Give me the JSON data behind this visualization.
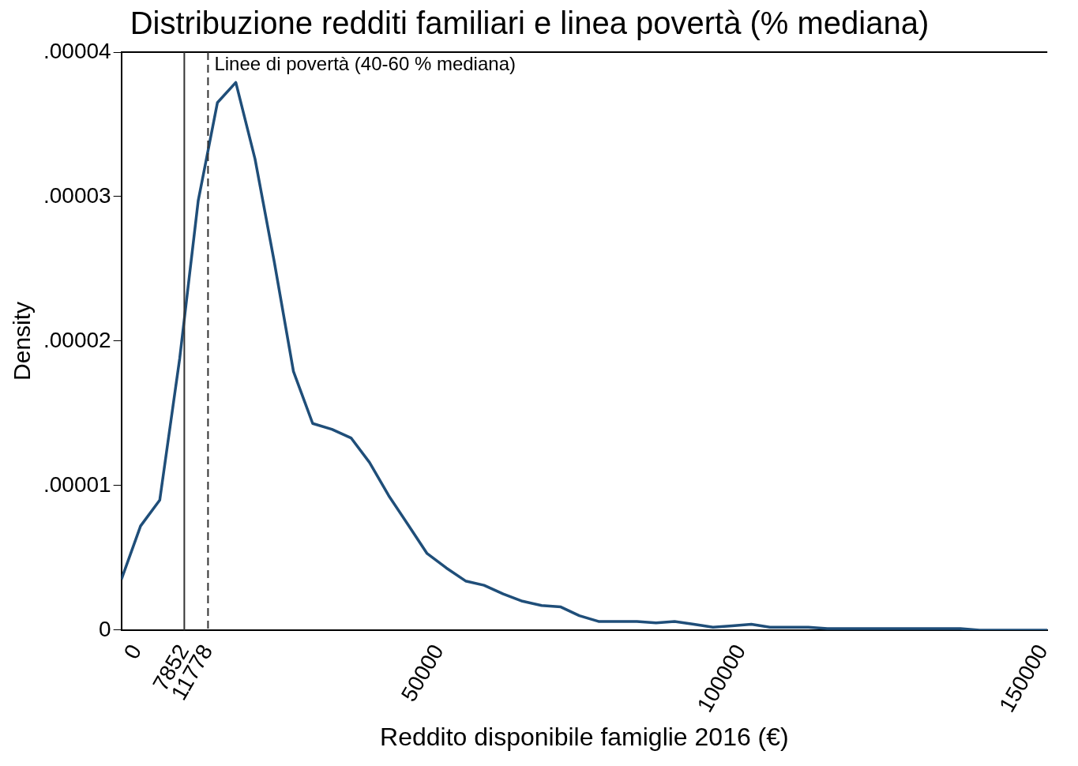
{
  "chart_data": {
    "type": "line",
    "title": "Distribuzione redditi familiari e linea povertà (% mediana)",
    "xlabel": "Reddito disponibile famiglie 2016 (€)",
    "ylabel": "Density",
    "x": [
      -2570,
      611,
      3790,
      7090,
      10150,
      13330,
      16380,
      19560,
      22740,
      25920,
      29100,
      32280,
      35450,
      38510,
      41690,
      44870,
      48040,
      51220,
      54400,
      57460,
      60640,
      63810,
      66990,
      70170,
      73230,
      76410,
      79580,
      82760,
      85940,
      89000,
      92180,
      95350,
      98530,
      101710,
      104770,
      107950,
      111130,
      114300,
      117480,
      120540,
      123720,
      126900,
      130080,
      133250,
      136310,
      139490,
      142670,
      145840,
      150700
    ],
    "series": [
      {
        "color": "#1f4e79",
        "values": [
          3.5e-06,
          7.2e-06,
          9e-06,
          1.88e-05,
          2.97e-05,
          3.65e-05,
          3.79e-05,
          3.26e-05,
          2.55e-05,
          1.79e-05,
          1.43e-05,
          1.39e-05,
          1.33e-05,
          1.16e-05,
          9.3e-06,
          7.3e-06,
          5.3e-06,
          4.3e-06,
          3.4e-06,
          3.1e-06,
          2.5e-06,
          2e-06,
          1.7e-06,
          1.6e-06,
          1e-06,
          6e-07,
          6e-07,
          6e-07,
          5e-07,
          6e-07,
          4e-07,
          2e-07,
          3e-07,
          4e-07,
          2e-07,
          2e-07,
          2e-07,
          1e-07,
          1e-07,
          1e-07,
          1e-07,
          1e-07,
          1e-07,
          1e-07,
          1e-07,
          0,
          0,
          0,
          0
        ]
      }
    ],
    "xlim": [
      -2570,
      150700
    ],
    "xticks": [
      0,
      7852,
      11778,
      50000,
      100000,
      150000
    ],
    "ylim": [
      0,
      4e-05
    ],
    "yticks": [
      0,
      {
        "value": 1e-05,
        "label": ".00001"
      },
      {
        "value": 2e-05,
        "label": ".00002"
      },
      {
        "value": 3e-05,
        "label": ".00003"
      },
      {
        "value": 4e-05,
        "label": ".00004"
      }
    ],
    "ref_lines": [
      {
        "axis": "x",
        "value": 7852,
        "color": "#333333",
        "line_style": "solid"
      },
      {
        "axis": "x",
        "value": 11778,
        "color": "#333333",
        "line_style": "dashed",
        "label": "Linee di povertà (40-60 % mediana)"
      }
    ],
    "grid": false,
    "legend": false,
    "marker": "none",
    "line_style": "solid"
  }
}
